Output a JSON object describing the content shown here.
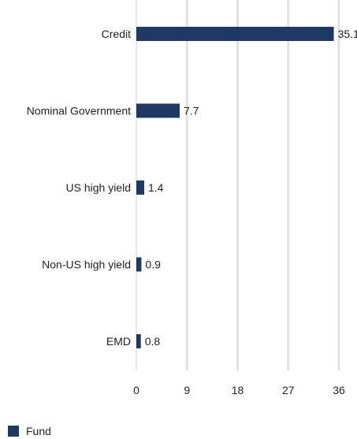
{
  "chart_data": {
    "type": "bar",
    "orientation": "horizontal",
    "categories": [
      "Credit",
      "Nominal Government",
      "US high yield",
      "Non-US high yield",
      "EMD"
    ],
    "series": [
      {
        "name": "Fund",
        "values": [
          35.1,
          7.7,
          1.4,
          0.9,
          0.8
        ]
      }
    ],
    "value_labels": [
      "35.1",
      "7.7",
      "1.4",
      "0.9",
      "0.8"
    ],
    "xticks": [
      0,
      9,
      18,
      27,
      36
    ],
    "xlim": [
      0,
      36
    ],
    "grid": "vertical",
    "legend": "bottom-left",
    "bar_color": "#1f3864",
    "grid_color": "#e2e2e2"
  }
}
